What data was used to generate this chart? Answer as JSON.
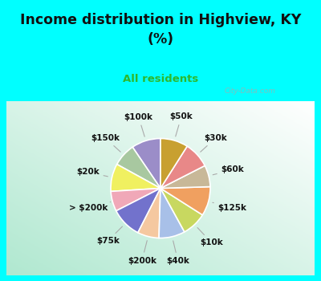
{
  "title": "Income distribution in Highview, KY\n(%)",
  "subtitle": "All residents",
  "title_color": "#111111",
  "subtitle_color": "#2db82d",
  "bg_color": "#00FFFF",
  "chart_bg_gradient_start": "#ffffff",
  "chart_bg_gradient_end": "#b0e8d0",
  "labels": [
    "$100k",
    "$150k",
    "$20k",
    "> $200k",
    "$75k",
    "$200k",
    "$40k",
    "$10k",
    "$125k",
    "$60k",
    "$30k",
    "$50k"
  ],
  "sizes": [
    9.5,
    7.5,
    9.0,
    6.5,
    10.0,
    7.0,
    8.5,
    8.0,
    9.5,
    7.0,
    8.5,
    9.0
  ],
  "colors": [
    "#9b8dc8",
    "#a8c8a0",
    "#f0f060",
    "#f0a8b8",
    "#7272cc",
    "#f5c8a0",
    "#a8c0e8",
    "#c8d860",
    "#f0a060",
    "#c8b898",
    "#e88888",
    "#c8a030"
  ],
  "startangle": 90,
  "wedge_edge_color": "#ffffff",
  "wedge_linewidth": 1.2,
  "label_fontsize": 7.5,
  "label_color": "#111111",
  "watermark": "City-Data.com"
}
